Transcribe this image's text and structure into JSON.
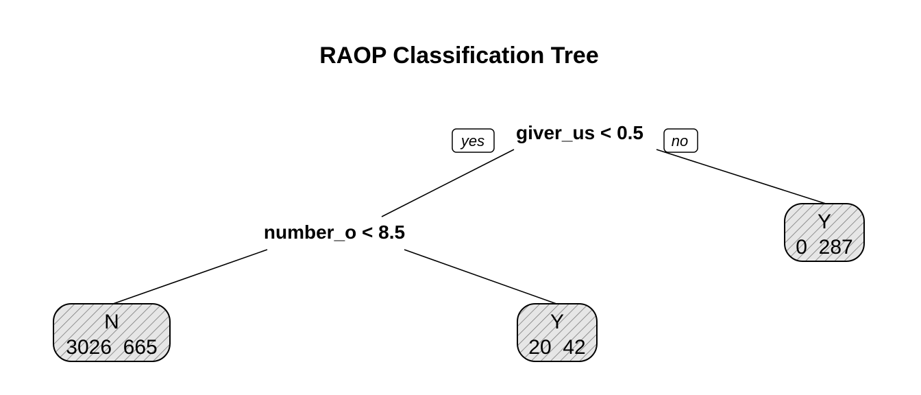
{
  "title": "RAOP Classification Tree",
  "colors": {
    "hatch_line": "#7a7a7a",
    "hatch_bg": "#e6e6e6",
    "stroke": "#000000"
  },
  "root": {
    "split": "giver_us < 0.5",
    "yes_label": "yes",
    "no_label": "no"
  },
  "inner": {
    "split": "number_o < 8.5"
  },
  "leaves": [
    {
      "id": "leaf-left",
      "class": "N",
      "counts": "3026  665"
    },
    {
      "id": "leaf-middle",
      "class": "Y",
      "counts": "20  42"
    },
    {
      "id": "leaf-right",
      "class": "Y",
      "counts": "0  287"
    }
  ]
}
